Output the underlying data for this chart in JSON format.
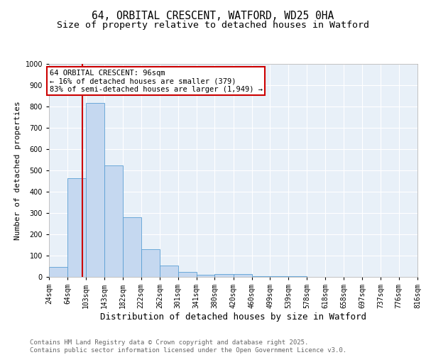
{
  "title": "64, ORBITAL CRESCENT, WATFORD, WD25 0HA",
  "subtitle": "Size of property relative to detached houses in Watford",
  "xlabel": "Distribution of detached houses by size in Watford",
  "ylabel": "Number of detached properties",
  "bar_color": "#c5d8f0",
  "bar_edge_color": "#5a9fd4",
  "background_color": "#e8f0f8",
  "grid_color": "#ffffff",
  "annotation_box_color": "#cc0000",
  "annotation_text": "64 ORBITAL CRESCENT: 96sqm\n← 16% of detached houses are smaller (379)\n83% of semi-detached houses are larger (1,949) →",
  "vline_x": 96,
  "vline_color": "#cc0000",
  "bins": [
    24,
    64,
    103,
    143,
    182,
    222,
    262,
    301,
    341,
    380,
    420,
    460,
    499,
    539,
    578,
    618,
    658,
    697,
    737,
    776,
    816
  ],
  "bin_labels": [
    "24sqm",
    "64sqm",
    "103sqm",
    "143sqm",
    "182sqm",
    "222sqm",
    "262sqm",
    "301sqm",
    "341sqm",
    "380sqm",
    "420sqm",
    "460sqm",
    "499sqm",
    "539sqm",
    "578sqm",
    "618sqm",
    "658sqm",
    "697sqm",
    "737sqm",
    "776sqm",
    "816sqm"
  ],
  "bar_heights": [
    46,
    465,
    818,
    525,
    280,
    130,
    55,
    25,
    10,
    12,
    12,
    5,
    3,
    2,
    1,
    1,
    0,
    0,
    0,
    0
  ],
  "ylim": [
    0,
    1000
  ],
  "yticks": [
    0,
    100,
    200,
    300,
    400,
    500,
    600,
    700,
    800,
    900,
    1000
  ],
  "footer_text": "Contains HM Land Registry data © Crown copyright and database right 2025.\nContains public sector information licensed under the Open Government Licence v3.0.",
  "title_fontsize": 10.5,
  "subtitle_fontsize": 9.5,
  "xlabel_fontsize": 9,
  "ylabel_fontsize": 8,
  "tick_fontsize": 7,
  "footer_fontsize": 6.5,
  "annotation_fontsize": 7.5
}
